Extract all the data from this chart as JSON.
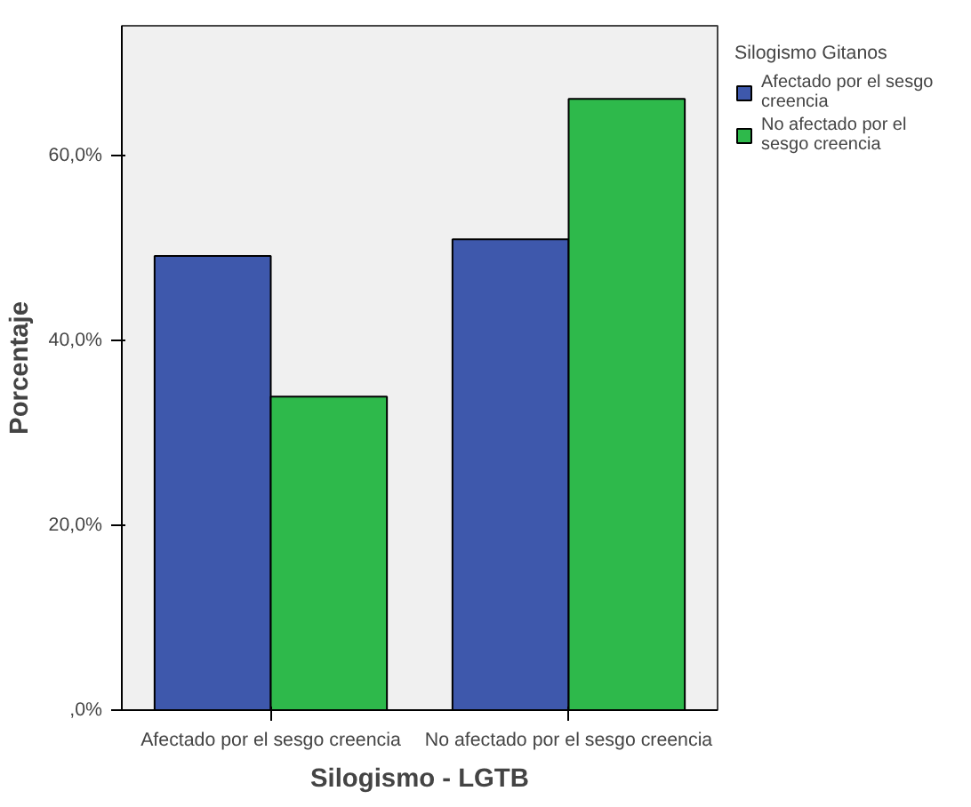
{
  "chart_data": {
    "type": "bar",
    "xlabel": "Silogismo - LGTB",
    "ylabel": "Porcentaje",
    "legend_title": "Silogismo Gitanos",
    "categories": [
      "Afectado por el sesgo creencia",
      "No afectado por el sesgo creencia"
    ],
    "series": [
      {
        "name": "Afectado por el sesgo creencia",
        "color": "#3e58ac",
        "values": [
          49.1,
          50.9
        ]
      },
      {
        "name": "No afectado por el sesgo creencia",
        "color": "#2eb94b",
        "values": [
          33.9,
          66.1
        ]
      }
    ],
    "ylim": [
      0,
      74
    ],
    "yticks": [
      {
        "value": 0,
        "label": ",0%"
      },
      {
        "value": 20,
        "label": "20,0%"
      },
      {
        "value": 40,
        "label": "40,0%"
      },
      {
        "value": 60,
        "label": "60,0%"
      }
    ],
    "legend": "top right"
  }
}
